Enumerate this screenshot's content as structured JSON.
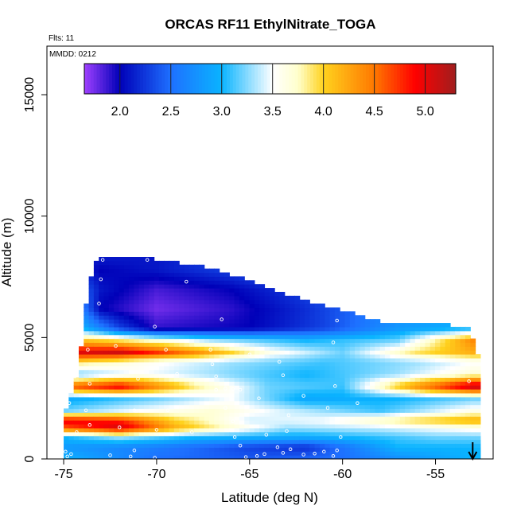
{
  "chart_data": {
    "type": "heatmap",
    "title": "ORCAS RF11 EthylNitrate_TOGA",
    "annotations": {
      "flights": "Flts: 11",
      "date": "MMDD: 0212"
    },
    "xlabel": "Latitude (deg N)",
    "ylabel": "Altitude (m)",
    "xlim": [
      -75.9,
      -51.9
    ],
    "ylim": [
      0,
      17000
    ],
    "xticks": [
      -75,
      -70,
      -65,
      -60,
      -55
    ],
    "xtick_labels": [
      "-75",
      "-70",
      "-65",
      "-60",
      "-55"
    ],
    "yticks": [
      0,
      5000,
      10000,
      15000
    ],
    "ytick_labels": [
      "0",
      "5000",
      "10000",
      "15000"
    ],
    "colorbar": {
      "range": [
        1.65,
        5.3
      ],
      "ticks": [
        2.0,
        2.5,
        3.0,
        3.5,
        4.0,
        4.5,
        5.0
      ],
      "tick_labels": [
        "2.0",
        "2.5",
        "3.0",
        "3.5",
        "4.0",
        "4.5",
        "5.0"
      ],
      "stops": [
        [
          1.65,
          "#a040ff"
        ],
        [
          2.0,
          "#0000b8"
        ],
        [
          2.5,
          "#1e70ff"
        ],
        [
          3.0,
          "#0ab4ff"
        ],
        [
          3.5,
          "#ffffff"
        ],
        [
          3.75,
          "#ffffcc"
        ],
        [
          4.0,
          "#ffd21e"
        ],
        [
          4.5,
          "#ff7800"
        ],
        [
          4.9,
          "#ff0000"
        ],
        [
          5.3,
          "#a01e1e"
        ]
      ]
    },
    "lat_bounds": [
      -75.0,
      -52.7
    ],
    "top_envelope": [
      [
        -75.0,
        1700
      ],
      [
        -74.2,
        3500
      ],
      [
        -73.7,
        6900
      ],
      [
        -73.2,
        8200
      ],
      [
        -70.5,
        8200
      ],
      [
        -67.0,
        7800
      ],
      [
        -63.0,
        6700
      ],
      [
        -58.0,
        5600
      ],
      [
        -53.2,
        5400
      ],
      [
        -52.7,
        4200
      ]
    ],
    "bands": [
      {
        "alt": 0,
        "values": [
          [
            -75,
            3.0
          ],
          [
            -70,
            2.5
          ],
          [
            -65,
            2.4
          ],
          [
            -60,
            2.5
          ],
          [
            -53,
            3.0
          ]
        ]
      },
      {
        "alt": 500,
        "values": [
          [
            -75,
            2.8
          ],
          [
            -70,
            2.6
          ],
          [
            -65,
            2.3
          ],
          [
            -62,
            2.2
          ],
          [
            -57,
            3.0
          ]
        ]
      },
      {
        "alt": 900,
        "values": [
          [
            -75,
            3.0
          ],
          [
            -72,
            3.3
          ],
          [
            -68,
            3.0
          ],
          [
            -62,
            2.9
          ],
          [
            -55,
            3.2
          ]
        ]
      },
      {
        "alt": 1300,
        "values": [
          [
            -75,
            4.6
          ],
          [
            -72,
            5.1
          ],
          [
            -69,
            4.2
          ],
          [
            -66,
            3.7
          ],
          [
            -63,
            3.3
          ],
          [
            -58,
            3.4
          ],
          [
            -53,
            3.6
          ]
        ]
      },
      {
        "alt": 1600,
        "values": [
          [
            -75,
            5.0
          ],
          [
            -72,
            4.8
          ],
          [
            -69,
            4.0
          ],
          [
            -65,
            3.4
          ],
          [
            -61,
            3.5
          ],
          [
            -56,
            4.0
          ],
          [
            -53,
            4.2
          ]
        ]
      },
      {
        "alt": 2000,
        "values": [
          [
            -75,
            3.2
          ],
          [
            -71,
            3.5
          ],
          [
            -67,
            3.7
          ],
          [
            -63,
            3.4
          ],
          [
            -58,
            3.1
          ],
          [
            -53,
            3.6
          ]
        ]
      },
      {
        "alt": 2500,
        "values": [
          [
            -75,
            2.9
          ],
          [
            -70,
            3.2
          ],
          [
            -66,
            3.5
          ],
          [
            -62,
            2.9
          ],
          [
            -57,
            3.0
          ],
          [
            -53,
            3.2
          ]
        ]
      },
      {
        "alt": 3000,
        "values": [
          [
            -75,
            4.6
          ],
          [
            -72,
            5.0
          ],
          [
            -68,
            3.9
          ],
          [
            -64,
            3.2
          ],
          [
            -60,
            3.1
          ],
          [
            -56,
            4.4
          ],
          [
            -53,
            5.2
          ]
        ]
      },
      {
        "alt": 3500,
        "values": [
          [
            -75,
            3.1
          ],
          [
            -71,
            3.5
          ],
          [
            -67,
            3.3
          ],
          [
            -62,
            3.0
          ],
          [
            -57,
            3.3
          ],
          [
            -53,
            3.7
          ]
        ]
      },
      {
        "alt": 4000,
        "values": [
          [
            -75,
            4.0
          ],
          [
            -71,
            3.6
          ],
          [
            -66,
            3.3
          ],
          [
            -61,
            3.1
          ],
          [
            -56,
            3.3
          ],
          [
            -53,
            3.5
          ]
        ]
      },
      {
        "alt": 4400,
        "values": [
          [
            -75,
            5.0
          ],
          [
            -72,
            5.1
          ],
          [
            -68,
            4.4
          ],
          [
            -64,
            3.6
          ],
          [
            -60,
            3.2
          ],
          [
            -56,
            3.9
          ],
          [
            -53,
            4.2
          ]
        ]
      },
      {
        "alt": 4900,
        "values": [
          [
            -75,
            4.2
          ],
          [
            -72,
            3.9
          ],
          [
            -67,
            3.3
          ],
          [
            -62,
            3.0
          ],
          [
            -57,
            3.2
          ],
          [
            -53,
            4.4
          ]
        ]
      },
      {
        "alt": 5400,
        "values": [
          [
            -75,
            3.3
          ],
          [
            -72,
            2.3
          ],
          [
            -70,
            1.9
          ],
          [
            -65,
            2.0
          ],
          [
            -61,
            2.3
          ],
          [
            -57,
            2.8
          ],
          [
            -53,
            3.0
          ]
        ]
      },
      {
        "alt": 6200,
        "values": [
          [
            -75,
            3.2
          ],
          [
            -73,
            2.0
          ],
          [
            -70,
            1.75
          ],
          [
            -66,
            1.9
          ],
          [
            -62,
            2.2
          ],
          [
            -58,
            2.6
          ],
          [
            -53,
            3.0
          ]
        ]
      },
      {
        "alt": 7000,
        "values": [
          [
            -75,
            2.8
          ],
          [
            -73,
            2.1
          ],
          [
            -70,
            1.85
          ],
          [
            -66,
            2.0
          ],
          [
            -62,
            2.3
          ],
          [
            -58,
            2.7
          ],
          [
            -53,
            3.0
          ]
        ]
      },
      {
        "alt": 7800,
        "values": [
          [
            -75,
            2.3
          ],
          [
            -73,
            2.0
          ],
          [
            -70,
            2.1
          ],
          [
            -66,
            2.3
          ],
          [
            -62,
            2.6
          ],
          [
            -58,
            2.8
          ],
          [
            -53,
            3.0
          ]
        ]
      },
      {
        "alt": 8200,
        "values": [
          [
            -75,
            2.1
          ],
          [
            -70,
            2.1
          ],
          [
            -66,
            2.3
          ],
          [
            -60,
            2.8
          ],
          [
            -53,
            3.0
          ]
        ]
      }
    ],
    "samples": [
      [
        -74.8,
        100
      ],
      [
        -74.6,
        200
      ],
      [
        -74.9,
        300
      ],
      [
        -72.5,
        150
      ],
      [
        -71.4,
        100
      ],
      [
        -71.2,
        350
      ],
      [
        -70.1,
        50
      ],
      [
        -65.2,
        80
      ],
      [
        -64.6,
        120
      ],
      [
        -64.2,
        200
      ],
      [
        -63.2,
        250
      ],
      [
        -62.1,
        180
      ],
      [
        -61.5,
        220
      ],
      [
        -61.0,
        300
      ],
      [
        -60.5,
        120
      ],
      [
        -65.5,
        550
      ],
      [
        -63.5,
        480
      ],
      [
        -62.8,
        400
      ],
      [
        -60.3,
        350
      ],
      [
        -65.8,
        900
      ],
      [
        -64.1,
        1000
      ],
      [
        -63.0,
        1150
      ],
      [
        -60.1,
        900
      ],
      [
        -74.3,
        1100
      ],
      [
        -73.6,
        1400
      ],
      [
        -72.0,
        1300
      ],
      [
        -70.0,
        1200
      ],
      [
        -68.1,
        1100
      ],
      [
        -65.9,
        1550
      ],
      [
        -62.9,
        1800
      ],
      [
        -60.8,
        2100
      ],
      [
        -59.2,
        2300
      ],
      [
        -74.7,
        2300
      ],
      [
        -73.8,
        2000
      ],
      [
        -71.2,
        2000
      ],
      [
        -69.4,
        2000
      ],
      [
        -66.3,
        2100
      ],
      [
        -62.1,
        2600
      ],
      [
        -64.5,
        2500
      ],
      [
        -66.8,
        2850
      ],
      [
        -66.3,
        2900
      ],
      [
        -65.9,
        2880
      ],
      [
        -65.5,
        2850
      ],
      [
        -60.4,
        3000
      ],
      [
        -73.6,
        3100
      ],
      [
        -74.4,
        3400
      ],
      [
        -71.0,
        3300
      ],
      [
        -68.9,
        3500
      ],
      [
        -66.8,
        3400
      ],
      [
        -63.2,
        3450
      ],
      [
        -67.0,
        3900
      ],
      [
        -63.4,
        4000
      ],
      [
        -74.5,
        4400
      ],
      [
        -73.7,
        4500
      ],
      [
        -72.2,
        4650
      ],
      [
        -69.5,
        4500
      ],
      [
        -67.1,
        4500
      ],
      [
        -65.0,
        4300
      ],
      [
        -60.5,
        4800
      ],
      [
        -53.2,
        3200
      ],
      [
        -70.1,
        5450
      ],
      [
        -66.5,
        5750
      ],
      [
        -60.3,
        5700
      ],
      [
        -73.1,
        6400
      ],
      [
        -73.0,
        7400
      ],
      [
        -72.9,
        8200
      ],
      [
        -68.4,
        7300
      ],
      [
        -70.5,
        8200
      ]
    ],
    "arrow_marker": {
      "lat": -53.0,
      "description": "down arrow at the bottom axis"
    }
  }
}
